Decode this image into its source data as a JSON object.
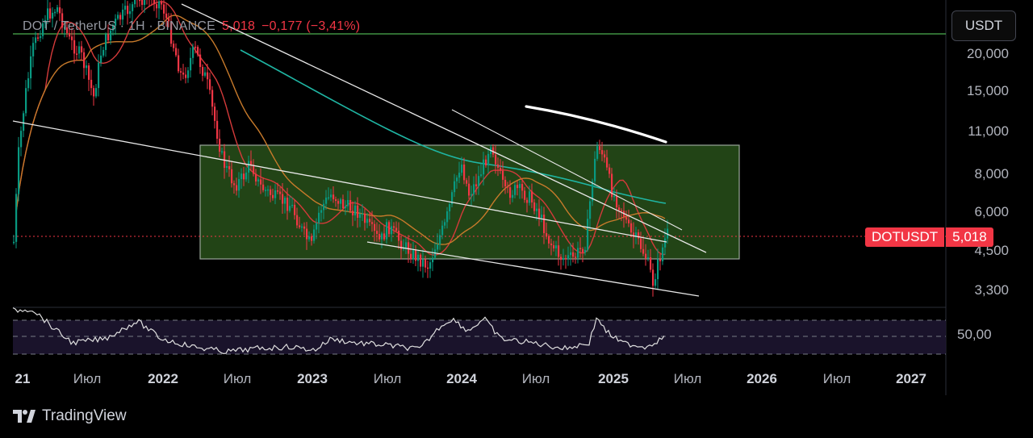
{
  "header": {
    "symbol": "DOT / TetherUS · 1Н · BINANCE",
    "last_price": "5,018",
    "change": "−0,177 (−3,41%)"
  },
  "toolbar": {
    "currency": "USDT"
  },
  "price_axis": {
    "ticks": [
      "20,000",
      "15,000",
      "11,000",
      "8,000",
      "6,000",
      "4,500",
      "3,300"
    ],
    "current_label": "DOTUSDT",
    "current_value": "5,018"
  },
  "rsi": {
    "label": "50,00"
  },
  "time_axis": {
    "ticks": [
      {
        "label": "21",
        "year": true
      },
      {
        "label": "Июл",
        "year": false
      },
      {
        "label": "2022",
        "year": true
      },
      {
        "label": "Июл",
        "year": false
      },
      {
        "label": "2023",
        "year": true
      },
      {
        "label": "Июл",
        "year": false
      },
      {
        "label": "2024",
        "year": true
      },
      {
        "label": "Июл",
        "year": false
      },
      {
        "label": "2025",
        "year": true
      },
      {
        "label": "Июл",
        "year": false
      },
      {
        "label": "2026",
        "year": true
      },
      {
        "label": "Июл",
        "year": false
      },
      {
        "label": "2027",
        "year": true
      }
    ]
  },
  "branding": {
    "name": "TradingView"
  },
  "colors": {
    "up": "#089981",
    "down": "#f23645",
    "ema_short": "#d43a3a",
    "ema_mid": "#c77a2b",
    "ema_long": "#1fb5a3",
    "zone_fill": "#2f5e1f",
    "level": "#4caf50"
  }
}
